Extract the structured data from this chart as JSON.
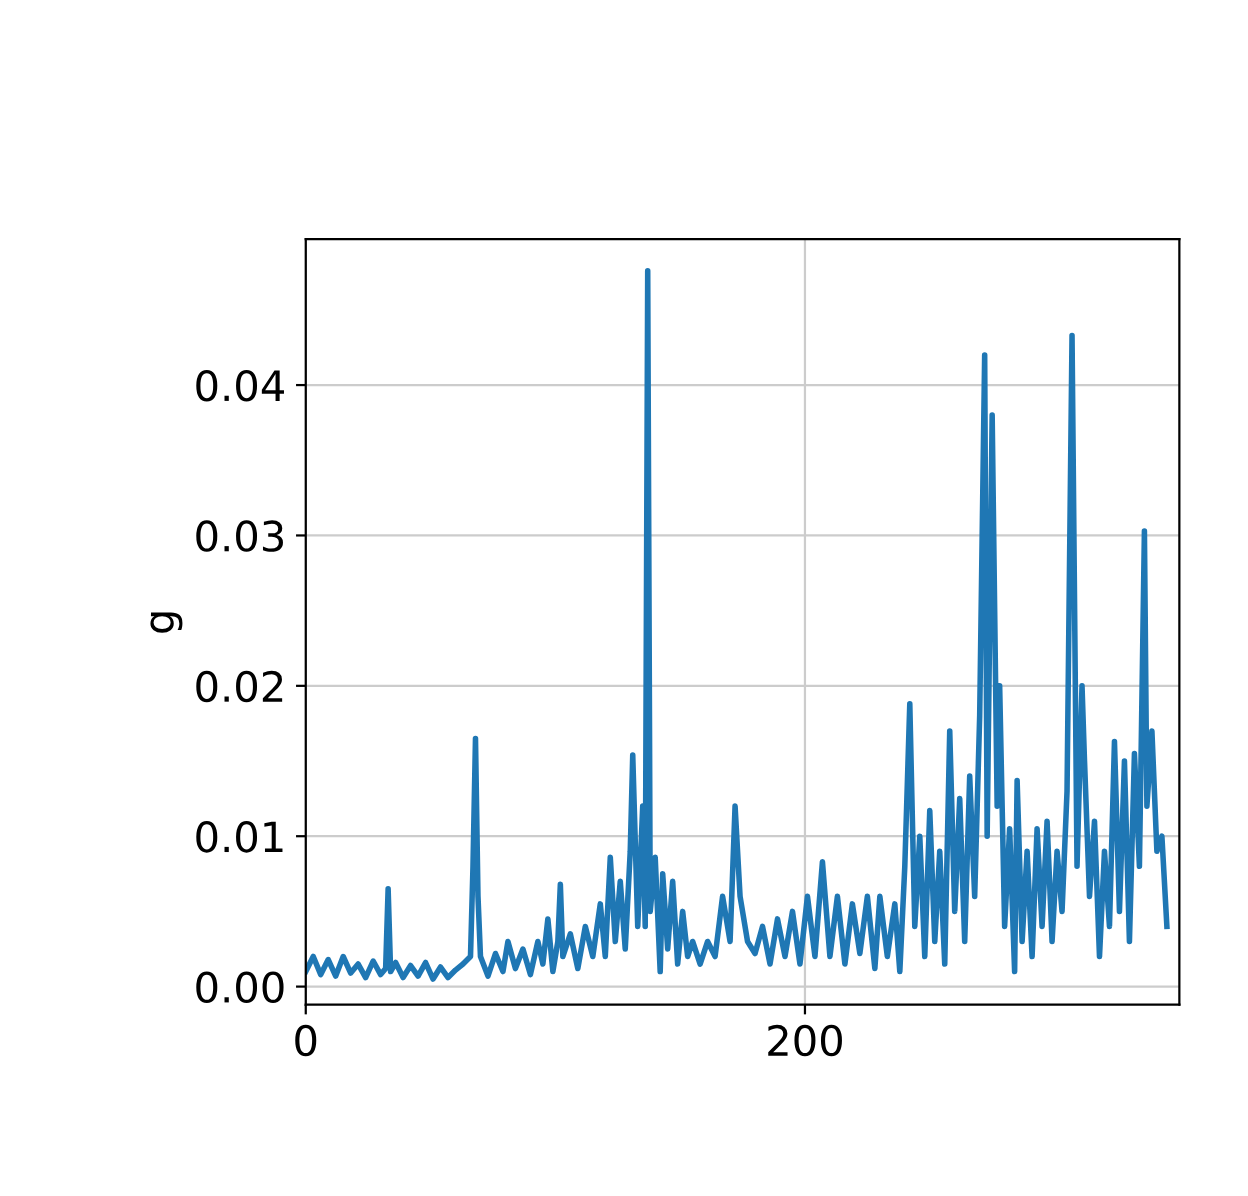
{
  "chart_data": {
    "type": "line",
    "ylabel": "g",
    "grid": true,
    "marker": "none",
    "line_style": "solid",
    "xlim": [
      0,
      350
    ],
    "ylim": [
      -0.0012,
      0.0497
    ],
    "xticks": [
      0,
      200
    ],
    "yticks": [
      {
        "value": 0,
        "label": "0.00"
      },
      {
        "value": 0.01,
        "label": "0.01"
      },
      {
        "value": 0.02,
        "label": "0.02"
      },
      {
        "value": 0.03,
        "label": "0.03"
      },
      {
        "value": 0.04,
        "label": "0.04"
      }
    ],
    "series": [
      {
        "color": "#1f77b4",
        "x": [
          0,
          3,
          6,
          9,
          12,
          15,
          18,
          21,
          24,
          27,
          30,
          32,
          33,
          34,
          36,
          39,
          42,
          45,
          48,
          51,
          54,
          57,
          60,
          63,
          66,
          67,
          68,
          69,
          70,
          73,
          76,
          79,
          81,
          84,
          87,
          90,
          93,
          95,
          97,
          99,
          101,
          102,
          103,
          106,
          109,
          112,
          115,
          118,
          120,
          122,
          124,
          126,
          128,
          130,
          131,
          133,
          135,
          136,
          137,
          138,
          140,
          142,
          143,
          145,
          147,
          149,
          151,
          153,
          155,
          158,
          161,
          164,
          167,
          170,
          172,
          174,
          177,
          180,
          183,
          186,
          189,
          192,
          195,
          198,
          201,
          204,
          207,
          210,
          213,
          216,
          219,
          222,
          225,
          228,
          230,
          233,
          236,
          238,
          240,
          242,
          244,
          246,
          248,
          250,
          252,
          254,
          256,
          258,
          260,
          262,
          264,
          266,
          268,
          270,
          272,
          273,
          275,
          277,
          278,
          280,
          282,
          284,
          285,
          287,
          289,
          291,
          293,
          295,
          297,
          299,
          301,
          303,
          305,
          307,
          309,
          311,
          312,
          314,
          316,
          318,
          320,
          322,
          324,
          326,
          328,
          330,
          332,
          334,
          336,
          337,
          339,
          341,
          343,
          345
        ],
        "values": [
          0.001,
          0.002,
          0.0008,
          0.0018,
          0.0007,
          0.002,
          0.0009,
          0.0015,
          0.0006,
          0.0017,
          0.0008,
          0.0012,
          0.0065,
          0.001,
          0.0016,
          0.0006,
          0.0014,
          0.0007,
          0.0016,
          0.0005,
          0.0013,
          0.0006,
          0.0011,
          0.0015,
          0.002,
          0.008,
          0.0165,
          0.006,
          0.002,
          0.0007,
          0.0022,
          0.001,
          0.003,
          0.0012,
          0.0025,
          0.0008,
          0.003,
          0.0015,
          0.0045,
          0.001,
          0.003,
          0.0068,
          0.002,
          0.0035,
          0.0012,
          0.004,
          0.002,
          0.0055,
          0.002,
          0.0086,
          0.003,
          0.007,
          0.0025,
          0.009,
          0.0154,
          0.004,
          0.012,
          0.004,
          0.0476,
          0.005,
          0.0086,
          0.001,
          0.0075,
          0.0025,
          0.007,
          0.0015,
          0.005,
          0.002,
          0.003,
          0.0015,
          0.003,
          0.002,
          0.006,
          0.003,
          0.012,
          0.006,
          0.003,
          0.0022,
          0.004,
          0.0015,
          0.0045,
          0.002,
          0.005,
          0.0015,
          0.006,
          0.002,
          0.0083,
          0.002,
          0.006,
          0.0015,
          0.0055,
          0.0022,
          0.006,
          0.0012,
          0.006,
          0.002,
          0.0055,
          0.001,
          0.008,
          0.0188,
          0.004,
          0.01,
          0.002,
          0.0117,
          0.003,
          0.009,
          0.0015,
          0.017,
          0.005,
          0.0125,
          0.003,
          0.014,
          0.006,
          0.018,
          0.042,
          0.01,
          0.038,
          0.012,
          0.02,
          0.004,
          0.0105,
          0.001,
          0.0137,
          0.003,
          0.009,
          0.002,
          0.0105,
          0.004,
          0.011,
          0.003,
          0.009,
          0.005,
          0.013,
          0.0433,
          0.008,
          0.02,
          0.015,
          0.006,
          0.011,
          0.002,
          0.009,
          0.004,
          0.0163,
          0.005,
          0.015,
          0.003,
          0.0155,
          0.008,
          0.0303,
          0.012,
          0.017,
          0.009,
          0.01,
          0.004
        ]
      }
    ]
  }
}
